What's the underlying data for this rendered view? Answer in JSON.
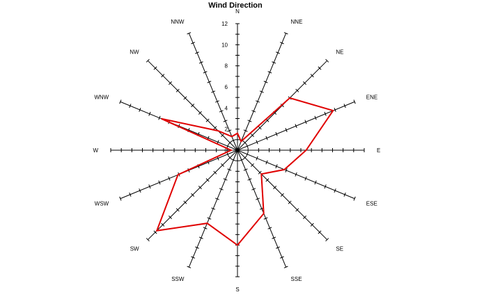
{
  "chart_data": {
    "type": "radar",
    "title": "Wind Direction",
    "directions": [
      "N",
      "NNE",
      "NE",
      "ENE",
      "E",
      "ESE",
      "SE",
      "SSE",
      "S",
      "SSW",
      "SW",
      "WSW",
      "W",
      "WNW",
      "NW",
      "NNW"
    ],
    "series": [
      {
        "values": [
          1.6,
          0.9,
          7.0,
          9.8,
          6.5,
          4.8,
          3.2,
          6.5,
          9.0,
          7.5,
          10.8,
          6.1,
          0.6,
          7.8,
          2.6,
          1.4
        ]
      }
    ],
    "radial_axis": {
      "min": 0,
      "max": 12,
      "major_step": 2,
      "tick_labels": [
        "0",
        "2",
        "4",
        "6",
        "8",
        "10",
        "12"
      ],
      "minor_ticks_per_major": 1
    },
    "colors": {
      "series": "#e00000",
      "axes": "#000000"
    },
    "grid": false,
    "legend": "none"
  }
}
